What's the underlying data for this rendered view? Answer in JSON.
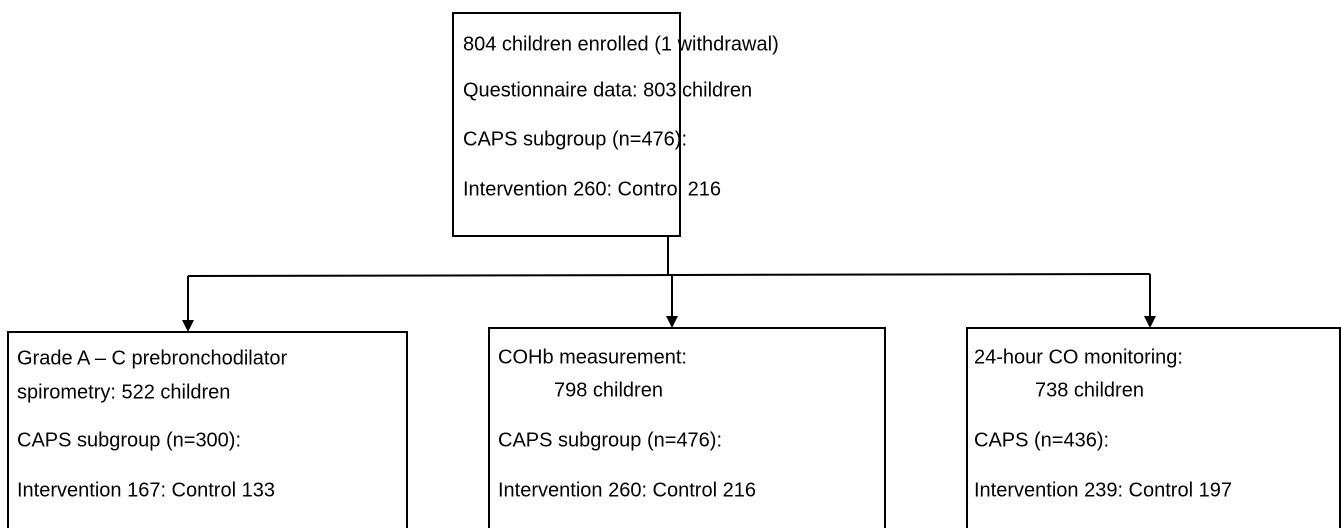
{
  "nodes": [
    {
      "lines": [
        "804 children enrolled (1 withdrawal)",
        "Questionnaire data: 803 children",
        "CAPS subgroup (n=476):",
        "Intervention 260: Control 216"
      ]
    },
    {
      "lines": [
        "Grade A – C prebronchodilator",
        "spirometry: 522 children",
        "CAPS subgroup (n=300):",
        "Intervention 167: Control 133"
      ]
    },
    {
      "lines": [
        "COHb measurement:",
        "798 children",
        "CAPS subgroup (n=476):",
        "Intervention 260: Control 216"
      ]
    },
    {
      "lines": [
        "24-hour CO monitoring:",
        "738 children",
        "CAPS (n=436):",
        "Intervention 239: Control 197"
      ]
    }
  ]
}
